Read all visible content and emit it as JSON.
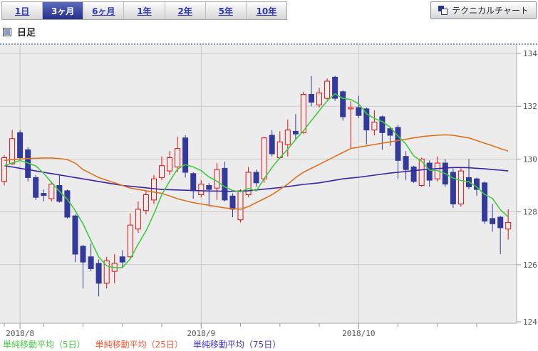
{
  "tabs": {
    "items": [
      {
        "label": "1日",
        "selected": false
      },
      {
        "label": "3ヶ月",
        "selected": true
      },
      {
        "label": "6ヶ月",
        "selected": false
      },
      {
        "label": "1年",
        "selected": false
      },
      {
        "label": "2年",
        "selected": false
      },
      {
        "label": "5年",
        "selected": false
      },
      {
        "label": "10年",
        "selected": false
      }
    ]
  },
  "technical_button": {
    "label": "テクニカルチャート"
  },
  "section": {
    "title": "日足"
  },
  "legend": {
    "items": [
      {
        "label": "単純移動平均（5日）",
        "color": "#44cc44"
      },
      {
        "label": "単純移動平均（25日）",
        "color": "#ff5533"
      },
      {
        "label": "単純移動平均（75日）",
        "color": "#4436cc"
      }
    ]
  },
  "chart_data": {
    "type": "candlestick",
    "title": "日足",
    "y_axis": {
      "ticks": [
        {
          "value": 134,
          "grid": true
        },
        {
          "value": 132,
          "grid": true
        },
        {
          "value": 130,
          "grid": true
        },
        {
          "value": 128,
          "grid": true
        },
        {
          "value": 126,
          "grid": true
        },
        {
          "value": 124,
          "grid": false
        }
      ],
      "min": 123.8,
      "max": 134.35,
      "position": "right"
    },
    "x_axis": {
      "month_labels": [
        {
          "label": "2018/8",
          "index": 2
        },
        {
          "label": "2018/9",
          "index": 25
        },
        {
          "label": "2018/10",
          "index": 45
        }
      ],
      "minor_tick_every": 5
    },
    "colors": {
      "up": "#e01111",
      "down": "#333a99",
      "ma5": "#3ecc3e",
      "ma25": "#e0711c",
      "ma75": "#3a23a8",
      "plot_bg": "#ececec",
      "grid": "#c9c9c9",
      "axis": "#aaaaaa",
      "top_border": "#8890c8"
    },
    "candles": [
      [
        "7/30",
        129.15,
        130.15,
        129.0,
        130.05
      ],
      [
        "7/31",
        129.82,
        131.1,
        129.78,
        130.77
      ],
      [
        "8/1",
        131.0,
        131.1,
        129.95,
        130.05
      ],
      [
        "8/2",
        130.35,
        130.45,
        129.15,
        129.3
      ],
      [
        "8/3",
        129.3,
        129.4,
        128.45,
        128.55
      ],
      [
        "8/6",
        128.7,
        128.85,
        128.4,
        128.62
      ],
      [
        "8/7",
        128.5,
        129.15,
        128.4,
        129.05
      ],
      [
        "8/8",
        129.0,
        129.4,
        128.35,
        128.4
      ],
      [
        "8/9",
        128.8,
        128.85,
        127.75,
        127.8
      ],
      [
        "8/10",
        127.85,
        127.9,
        126.1,
        126.4
      ],
      [
        "8/13",
        126.7,
        126.75,
        125.1,
        126.1
      ],
      [
        "8/14",
        126.3,
        126.8,
        125.75,
        125.85
      ],
      [
        "8/15",
        126.05,
        126.2,
        124.8,
        125.3
      ],
      [
        "8/16",
        125.3,
        126.3,
        125.1,
        126.15
      ],
      [
        "8/17",
        125.75,
        126.4,
        125.3,
        126.05
      ],
      [
        "8/20",
        126.3,
        126.55,
        125.9,
        126.1
      ],
      [
        "8/21",
        126.3,
        127.95,
        126.2,
        127.5
      ],
      [
        "8/22",
        127.35,
        128.4,
        127.2,
        128.1
      ],
      [
        "8/23",
        128.05,
        128.8,
        127.9,
        128.65
      ],
      [
        "8/24",
        128.45,
        129.4,
        128.3,
        129.25
      ],
      [
        "8/27",
        129.3,
        130.1,
        129.2,
        129.75
      ],
      [
        "8/28",
        129.55,
        130.3,
        129.4,
        130.05
      ],
      [
        "8/29",
        129.7,
        130.85,
        129.5,
        130.4
      ],
      [
        "8/30",
        130.8,
        130.9,
        129.3,
        129.5
      ],
      [
        "8/31",
        129.45,
        129.5,
        128.5,
        128.8
      ],
      [
        "9/3",
        128.65,
        129.2,
        128.55,
        129.05
      ],
      [
        "9/4",
        129.0,
        129.1,
        128.2,
        128.85
      ],
      [
        "9/5",
        128.9,
        129.85,
        128.45,
        129.6
      ],
      [
        "9/6",
        129.65,
        129.9,
        128.4,
        128.45
      ],
      [
        "9/7",
        128.6,
        128.7,
        127.8,
        128.1
      ],
      [
        "9/10",
        127.7,
        128.85,
        127.6,
        128.8
      ],
      [
        "9/11",
        128.65,
        129.7,
        128.55,
        129.5
      ],
      [
        "9/12",
        129.5,
        129.6,
        128.95,
        129.1
      ],
      [
        "9/13",
        129.25,
        130.85,
        129.1,
        130.8
      ],
      [
        "9/14",
        130.9,
        131.1,
        130.1,
        130.2
      ],
      [
        "9/17",
        130.05,
        131.05,
        130.0,
        130.65
      ],
      [
        "9/18",
        130.55,
        131.5,
        130.1,
        131.1
      ],
      [
        "9/19",
        131.05,
        131.7,
        130.75,
        130.95
      ],
      [
        "9/20",
        131.0,
        132.55,
        130.95,
        132.45
      ],
      [
        "9/21",
        132.45,
        133.15,
        132.0,
        132.15
      ],
      [
        "9/24",
        132.05,
        132.7,
        131.95,
        132.5
      ],
      [
        "9/25",
        132.3,
        133.05,
        132.25,
        132.95
      ],
      [
        "9/26",
        133.1,
        133.15,
        132.2,
        132.3
      ],
      [
        "9/27",
        132.55,
        132.6,
        131.45,
        131.6
      ],
      [
        "9/28",
        131.9,
        132.2,
        130.4,
        131.95
      ],
      [
        "10/1",
        131.95,
        132.4,
        131.55,
        131.65
      ],
      [
        "10/2",
        131.9,
        131.95,
        130.55,
        131.1
      ],
      [
        "10/3",
        131.1,
        131.85,
        130.9,
        131.4
      ],
      [
        "10/4",
        131.6,
        131.65,
        130.35,
        131.0
      ],
      [
        "10/5",
        131.15,
        131.2,
        130.5,
        130.9
      ],
      [
        "10/8",
        131.2,
        131.3,
        129.25,
        129.95
      ],
      [
        "10/9",
        130.1,
        130.3,
        129.2,
        129.6
      ],
      [
        "10/10",
        129.7,
        129.75,
        129.1,
        129.15
      ],
      [
        "10/11",
        129.0,
        130.05,
        128.95,
        130.0
      ],
      [
        "10/12",
        129.85,
        129.95,
        128.95,
        129.2
      ],
      [
        "10/15",
        129.25,
        130.1,
        129.15,
        129.85
      ],
      [
        "10/16",
        129.85,
        130.0,
        128.95,
        129.05
      ],
      [
        "10/17",
        129.5,
        129.65,
        128.15,
        128.3
      ],
      [
        "10/18",
        128.3,
        129.65,
        128.2,
        129.55
      ],
      [
        "10/19",
        129.3,
        130.0,
        128.85,
        128.95
      ],
      [
        "10/22",
        129.25,
        129.3,
        128.6,
        128.85
      ],
      [
        "10/23",
        129.1,
        129.15,
        127.55,
        127.65
      ],
      [
        "10/24",
        127.75,
        128.3,
        127.25,
        127.55
      ],
      [
        "10/25",
        127.8,
        127.85,
        126.4,
        127.4
      ],
      [
        "10/26",
        127.35,
        128.1,
        126.95,
        127.6
      ]
    ],
    "ma5": [
      129.75,
      129.85,
      129.95,
      129.85,
      129.74,
      129.46,
      129.11,
      128.78,
      128.48,
      128.05,
      127.55,
      126.91,
      126.29,
      125.96,
      125.89,
      125.89,
      126.22,
      126.78,
      127.28,
      127.92,
      128.65,
      129.16,
      129.62,
      129.79,
      129.7,
      129.56,
      129.32,
      129.16,
      128.95,
      128.81,
      128.76,
      128.89,
      128.79,
      129.26,
      129.68,
      130.05,
      130.37,
      130.74,
      131.07,
      131.46,
      131.83,
      132.2,
      132.47,
      132.3,
      132.26,
      132.09,
      131.72,
      131.54,
      131.42,
      131.21,
      130.87,
      130.57,
      130.12,
      129.92,
      129.58,
      129.56,
      129.45,
      129.28,
      129.19,
      129.14,
      128.94,
      128.66,
      128.51,
      128.08,
      127.81
    ],
    "ma25": [
      129.95,
      129.98,
      130.0,
      130.02,
      130.03,
      130.04,
      130.04,
      130.02,
      129.98,
      129.85,
      129.6,
      129.45,
      129.3,
      129.2,
      129.1,
      129.0,
      128.9,
      128.85,
      128.8,
      128.75,
      128.7,
      128.6,
      128.5,
      128.42,
      128.35,
      128.3,
      128.25,
      128.2,
      128.15,
      128.12,
      128.1,
      128.2,
      128.35,
      128.5,
      128.65,
      128.85,
      129.05,
      129.3,
      129.5,
      129.65,
      129.8,
      129.95,
      130.1,
      130.25,
      130.4,
      130.45,
      130.5,
      130.55,
      130.6,
      130.65,
      130.7,
      130.75,
      130.8,
      130.85,
      130.88,
      130.9,
      130.92,
      130.9,
      130.85,
      130.8,
      130.7,
      130.6,
      130.5,
      130.4,
      130.3
    ],
    "ma75": [
      129.75,
      129.7,
      129.65,
      129.6,
      129.55,
      129.5,
      129.45,
      129.4,
      129.35,
      129.3,
      129.25,
      129.2,
      129.15,
      129.1,
      129.05,
      129.0,
      128.97,
      128.94,
      128.91,
      128.88,
      128.85,
      128.84,
      128.83,
      128.82,
      128.81,
      128.8,
      128.79,
      128.79,
      128.78,
      128.78,
      128.78,
      128.8,
      128.83,
      128.86,
      128.89,
      128.92,
      128.96,
      129.0,
      129.04,
      129.07,
      129.1,
      129.15,
      129.2,
      129.25,
      129.28,
      129.31,
      129.35,
      129.39,
      129.43,
      129.47,
      129.5,
      129.53,
      129.56,
      129.59,
      129.62,
      129.64,
      129.66,
      129.68,
      129.68,
      129.67,
      129.65,
      129.63,
      129.6,
      129.58,
      129.55
    ]
  }
}
